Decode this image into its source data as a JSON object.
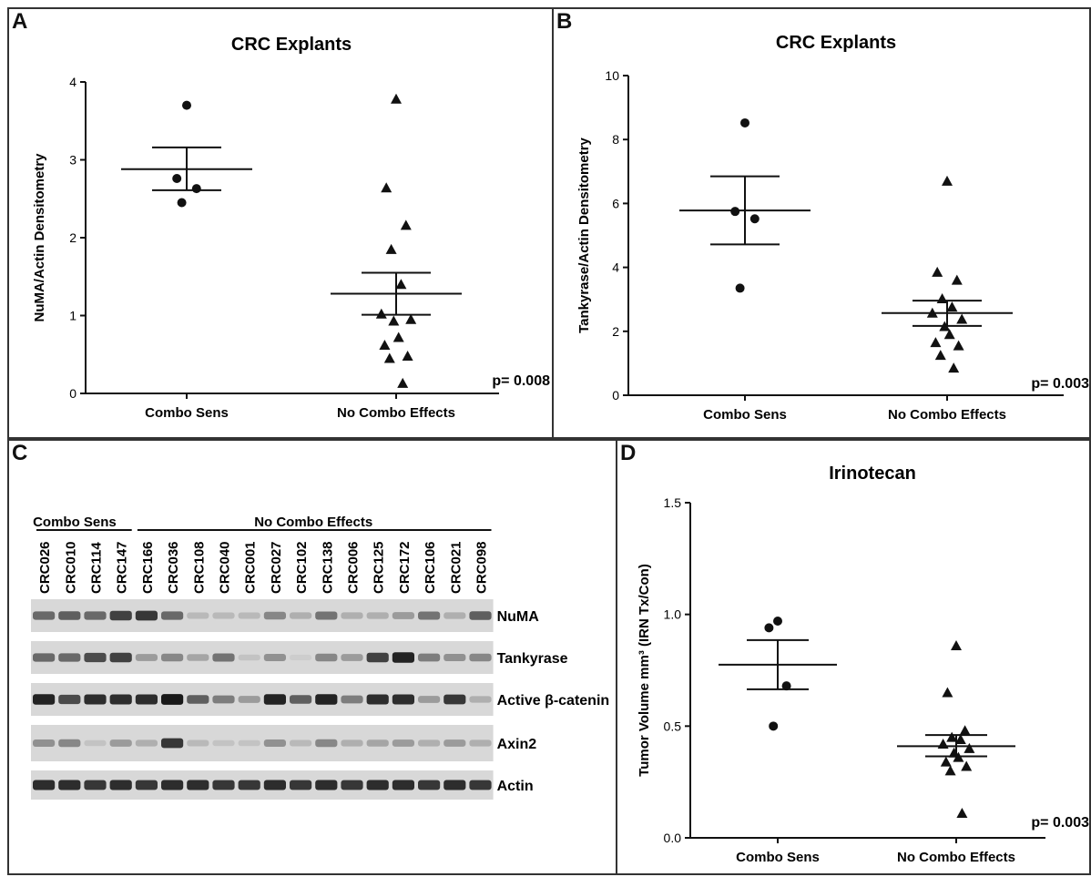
{
  "chart_data": [
    {
      "panel": "A",
      "type": "scatter",
      "title": "CRC Explants",
      "xlabel": "",
      "ylabel": "NuMA/Actin Densitometry",
      "ylim": [
        0,
        4
      ],
      "yticks": [
        0,
        1,
        2,
        3,
        4
      ],
      "categories": [
        "Combo Sens",
        "No Combo Effects"
      ],
      "groups": [
        {
          "category": "Combo Sens",
          "marker": "circle",
          "mean": 2.88,
          "sem": [
            2.61,
            3.16
          ],
          "values": [
            3.7,
            2.76,
            2.63,
            2.45
          ]
        },
        {
          "category": "No Combo Effects",
          "marker": "triangle",
          "mean": 1.28,
          "sem": [
            1.01,
            1.55
          ],
          "values": [
            3.78,
            2.64,
            2.16,
            1.85,
            1.4,
            1.02,
            0.95,
            0.93,
            0.72,
            0.62,
            0.48,
            0.45,
            0.13
          ]
        }
      ],
      "annotation": "p= 0.008"
    },
    {
      "panel": "B",
      "type": "scatter",
      "title": "CRC Explants",
      "xlabel": "",
      "ylabel": "Tankyrase/Actin Densitometry",
      "ylim": [
        0,
        10
      ],
      "yticks": [
        0,
        2,
        4,
        6,
        8,
        10
      ],
      "categories": [
        "Combo Sens",
        "No Combo Effects"
      ],
      "groups": [
        {
          "category": "Combo Sens",
          "marker": "circle",
          "mean": 5.78,
          "sem": [
            4.72,
            6.85
          ],
          "values": [
            8.52,
            5.75,
            5.52,
            3.35
          ]
        },
        {
          "category": "No Combo Effects",
          "marker": "triangle",
          "mean": 2.57,
          "sem": [
            2.17,
            2.96
          ],
          "values": [
            6.7,
            3.85,
            3.6,
            3.02,
            2.76,
            2.57,
            2.38,
            2.15,
            1.9,
            1.65,
            1.55,
            1.25,
            0.85
          ]
        }
      ],
      "annotation": "p= 0.003"
    },
    {
      "panel": "D",
      "type": "scatter",
      "title": "Irinotecan",
      "xlabel": "",
      "ylabel": "Tumor Volume mm³ (IRN Tx/Con)",
      "ylim": [
        0,
        1.5
      ],
      "yticks": [
        "0.0",
        "0.5",
        "1.0",
        "1.5"
      ],
      "categories": [
        "Combo Sens",
        "No Combo Effects"
      ],
      "groups": [
        {
          "category": "Combo Sens",
          "marker": "circle",
          "mean": 0.775,
          "sem": [
            0.665,
            0.885
          ],
          "values": [
            0.97,
            0.94,
            0.68,
            0.5
          ]
        },
        {
          "category": "No Combo Effects",
          "marker": "triangle",
          "mean": 0.41,
          "sem": [
            0.365,
            0.46
          ],
          "values": [
            0.86,
            0.65,
            0.48,
            0.45,
            0.44,
            0.42,
            0.4,
            0.38,
            0.36,
            0.34,
            0.32,
            0.3,
            0.11
          ]
        }
      ],
      "annotation": "p= 0.003"
    }
  ],
  "panels": {
    "a": {
      "label": "A"
    },
    "b": {
      "label": "B"
    },
    "c": {
      "label": "C"
    },
    "d": {
      "label": "D"
    }
  },
  "blot": {
    "group_sens": "Combo Sens",
    "group_nocombo": "No Combo Effects",
    "samples": [
      "CRC026",
      "CRC010",
      "CRC114",
      "CRC147",
      "CRC166",
      "CRC036",
      "CRC108",
      "CRC040",
      "CRC001",
      "CRC027",
      "CRC102",
      "CRC138",
      "CRC006",
      "CRC125",
      "CRC172",
      "CRC106",
      "CRC021",
      "CRC098"
    ],
    "bands": [
      {
        "label": "NuMA",
        "intensity": [
          0.55,
          0.6,
          0.55,
          0.75,
          0.8,
          0.55,
          0.15,
          0.15,
          0.15,
          0.4,
          0.2,
          0.5,
          0.2,
          0.2,
          0.3,
          0.5,
          0.2,
          0.6
        ]
      },
      {
        "label": "Tankyrase",
        "intensity": [
          0.55,
          0.55,
          0.7,
          0.75,
          0.3,
          0.4,
          0.25,
          0.5,
          0.1,
          0.35,
          0.05,
          0.4,
          0.3,
          0.75,
          0.9,
          0.45,
          0.35,
          0.4
        ]
      },
      {
        "label": "Active β-catenin",
        "intensity": [
          0.9,
          0.7,
          0.85,
          0.85,
          0.85,
          0.95,
          0.6,
          0.45,
          0.3,
          0.9,
          0.6,
          0.9,
          0.45,
          0.85,
          0.85,
          0.3,
          0.8,
          0.2
        ]
      },
      {
        "label": "Axin2",
        "intensity": [
          0.35,
          0.4,
          0.1,
          0.3,
          0.2,
          0.8,
          0.15,
          0.1,
          0.1,
          0.35,
          0.15,
          0.4,
          0.2,
          0.25,
          0.3,
          0.2,
          0.3,
          0.2
        ]
      },
      {
        "label": "Actin",
        "intensity": [
          0.85,
          0.85,
          0.8,
          0.85,
          0.8,
          0.85,
          0.85,
          0.8,
          0.8,
          0.85,
          0.8,
          0.85,
          0.8,
          0.85,
          0.85,
          0.8,
          0.85,
          0.8
        ]
      }
    ]
  }
}
